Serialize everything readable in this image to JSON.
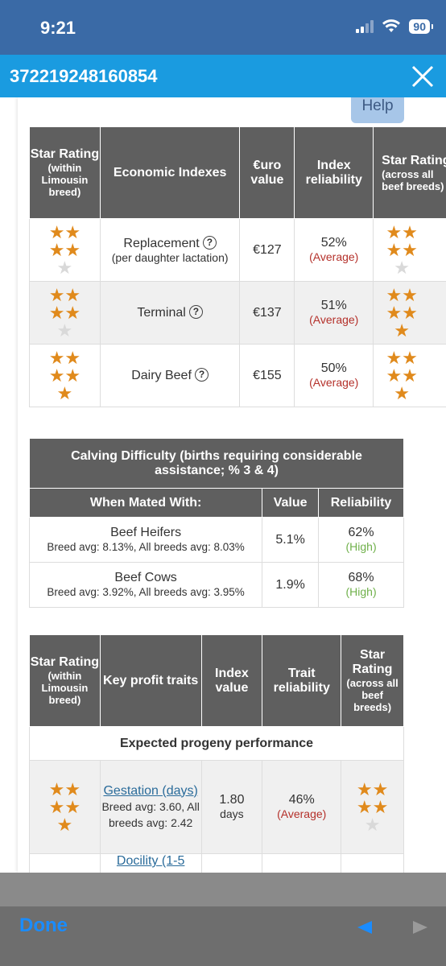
{
  "status": {
    "time": "9:21",
    "battery": "90"
  },
  "header": {
    "title": "372219248160854"
  },
  "help_label": "Help",
  "economic_table": {
    "headers": {
      "star_local": "Star Rating",
      "star_local_sub": "(within Limousin breed)",
      "index": "Economic Indexes",
      "value": "€uro value",
      "reliability": "Index reliability",
      "star_all": "Star Rating",
      "star_all_sub": "(across all beef breeds)"
    },
    "rows": [
      {
        "name": "Replacement",
        "sub": "(per daughter lactation)",
        "value": "€127",
        "reliability": "52%",
        "rel_label": "(Average)",
        "stars_local": 4,
        "stars_all": 4
      },
      {
        "name": "Terminal",
        "sub": "",
        "value": "€137",
        "reliability": "51%",
        "rel_label": "(Average)",
        "stars_local": 4,
        "stars_all": 5
      },
      {
        "name": "Dairy Beef",
        "sub": "",
        "value": "€155",
        "reliability": "50%",
        "rel_label": "(Average)",
        "stars_local": 5,
        "stars_all": 5
      }
    ]
  },
  "calving_table": {
    "title": "Calving Difficulty (births requiring considerable assistance; % 3 & 4)",
    "headers": {
      "mated": "When Mated With:",
      "value": "Value",
      "reliability": "Reliability"
    },
    "rows": [
      {
        "name": "Beef Heifers",
        "sub": "Breed avg: 8.13%, All breeds avg: 8.03%",
        "value": "5.1%",
        "reliability": "62%",
        "rel_label": "(High)"
      },
      {
        "name": "Beef Cows",
        "sub": "Breed avg: 3.92%, All breeds avg: 3.95%",
        "value": "1.9%",
        "reliability": "68%",
        "rel_label": "(High)"
      }
    ]
  },
  "traits_table": {
    "headers": {
      "star_local": "Star Rating",
      "star_local_sub": "(within Limousin breed)",
      "traits": "Key profit traits",
      "index_value": "Index value",
      "reliability": "Trait reliability",
      "star_all": "Star Rating",
      "star_all_sub": "(across all beef breeds)"
    },
    "section": "Expected progeny performance",
    "rows": [
      {
        "name": "Gestation (days)",
        "sub": "Breed avg: 3.60, All breeds avg: 2.42",
        "value": "1.80",
        "unit": "days",
        "reliability": "46%",
        "rel_label": "(Average)",
        "stars_local": 5,
        "stars_all": 4
      },
      {
        "name": "Docility (1-5"
      }
    ]
  },
  "toolbar": {
    "done": "Done"
  },
  "colors": {
    "status_bar": "#3a6aa6",
    "title_bar": "#1a9be0",
    "table_header": "#5f5f5f",
    "star": "#e08a1c",
    "average": "#b4302a",
    "high": "#6fb04a"
  }
}
